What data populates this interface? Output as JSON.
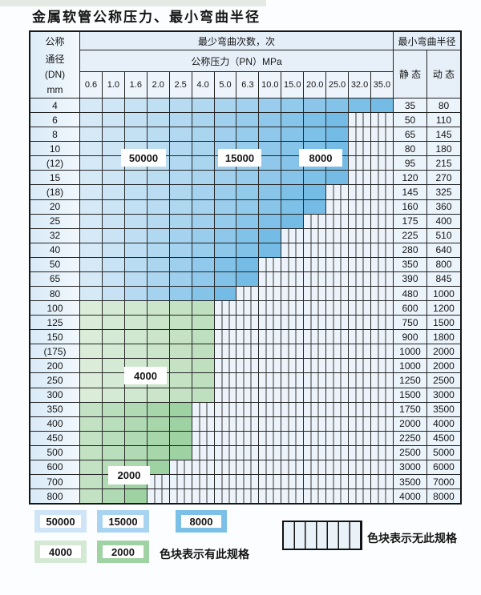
{
  "title": "金属软管公称压力、最小弯曲半径",
  "table": {
    "dn_header_lines": [
      "公称",
      "通径",
      "(DN)",
      "mm"
    ],
    "bend_cycles_header": "最少弯曲次数，次",
    "pressure_header": "公称压力（PN）MPa",
    "radius_header": "最小弯曲半径",
    "static_header": "静 态",
    "dynamic_header": "动 态"
  },
  "region_labels": {
    "r50000": "50000",
    "r15000": "15000",
    "r8000": "8000",
    "r4000": "4000",
    "r2000": "2000"
  },
  "legend": {
    "available_items": [
      "50000",
      "15000",
      "8000",
      "4000",
      "2000"
    ],
    "available_label": "色块表示有此规格",
    "unavailable_label": "色块表示无此规格"
  },
  "colors": {
    "blue_light": "#d6e9f7",
    "blue_dark": "#74bce6",
    "green4000_light": "#dbedd9",
    "green4000_dark": "#bfe0bf",
    "green2000_light": "#c2e2c3",
    "green2000_dark": "#9ed2a2",
    "legend_50000": "#cfe4f6",
    "legend_15000": "#a9d4f1",
    "legend_8000": "#7cc0e8",
    "legend_4000": "#d4e9d3",
    "legend_2000": "#9fd3a3",
    "nospec_bg": "#ecf3fa",
    "grid_line": "#2a2a2a"
  },
  "chart_data": {
    "type": "table",
    "title": "金属软管公称压力、最小弯曲半径",
    "pressure_columns": [
      "0.6",
      "1.0",
      "1.6",
      "2.0",
      "2.5",
      "4.0",
      "5.0",
      "6.3",
      "10.0",
      "15.0",
      "20.0",
      "25.0",
      "32.0",
      "35.0"
    ],
    "zone_bend_cycles_labels": {
      "blue": [
        "50000",
        "15000",
        "8000"
      ],
      "green4000": [
        "4000"
      ],
      "green2000": [
        "2000"
      ]
    },
    "rows": [
      {
        "dn": "4",
        "zone": "blue",
        "available_cols": 14,
        "static": "35",
        "dynamic": "80"
      },
      {
        "dn": "6",
        "zone": "blue",
        "available_cols": 12,
        "static": "50",
        "dynamic": "110"
      },
      {
        "dn": "8",
        "zone": "blue",
        "available_cols": 12,
        "static": "65",
        "dynamic": "145"
      },
      {
        "dn": "10",
        "zone": "blue",
        "available_cols": 12,
        "static": "80",
        "dynamic": "180"
      },
      {
        "dn": "(12)",
        "zone": "blue",
        "available_cols": 12,
        "static": "95",
        "dynamic": "215"
      },
      {
        "dn": "15",
        "zone": "blue",
        "available_cols": 12,
        "static": "120",
        "dynamic": "270"
      },
      {
        "dn": "(18)",
        "zone": "blue",
        "available_cols": 11,
        "static": "145",
        "dynamic": "325"
      },
      {
        "dn": "20",
        "zone": "blue",
        "available_cols": 11,
        "static": "160",
        "dynamic": "360"
      },
      {
        "dn": "25",
        "zone": "blue",
        "available_cols": 10,
        "static": "175",
        "dynamic": "400"
      },
      {
        "dn": "32",
        "zone": "blue",
        "available_cols": 9,
        "static": "225",
        "dynamic": "510"
      },
      {
        "dn": "40",
        "zone": "blue",
        "available_cols": 9,
        "static": "280",
        "dynamic": "640"
      },
      {
        "dn": "50",
        "zone": "blue",
        "available_cols": 8,
        "static": "350",
        "dynamic": "800"
      },
      {
        "dn": "65",
        "zone": "blue",
        "available_cols": 8,
        "static": "390",
        "dynamic": "845"
      },
      {
        "dn": "80",
        "zone": "blue",
        "available_cols": 7,
        "static": "480",
        "dynamic": "1000"
      },
      {
        "dn": "100",
        "zone": "green4000",
        "available_cols": 6,
        "static": "600",
        "dynamic": "1200"
      },
      {
        "dn": "125",
        "zone": "green4000",
        "available_cols": 6,
        "static": "750",
        "dynamic": "1500"
      },
      {
        "dn": "150",
        "zone": "green4000",
        "available_cols": 6,
        "static": "900",
        "dynamic": "1800"
      },
      {
        "dn": "(175)",
        "zone": "green4000",
        "available_cols": 6,
        "static": "1000",
        "dynamic": "2000"
      },
      {
        "dn": "200",
        "zone": "green4000",
        "available_cols": 6,
        "static": "1000",
        "dynamic": "2000"
      },
      {
        "dn": "250",
        "zone": "green4000",
        "available_cols": 6,
        "static": "1250",
        "dynamic": "2500"
      },
      {
        "dn": "300",
        "zone": "green4000",
        "available_cols": 6,
        "static": "1500",
        "dynamic": "3000"
      },
      {
        "dn": "350",
        "zone": "green2000",
        "available_cols": 5,
        "static": "1750",
        "dynamic": "3500"
      },
      {
        "dn": "400",
        "zone": "green2000",
        "available_cols": 5,
        "static": "2000",
        "dynamic": "4000"
      },
      {
        "dn": "450",
        "zone": "green2000",
        "available_cols": 5,
        "static": "2250",
        "dynamic": "4500"
      },
      {
        "dn": "500",
        "zone": "green2000",
        "available_cols": 5,
        "static": "2500",
        "dynamic": "5000"
      },
      {
        "dn": "600",
        "zone": "green2000",
        "available_cols": 4,
        "static": "3000",
        "dynamic": "6000"
      },
      {
        "dn": "700",
        "zone": "green2000",
        "available_cols": 3,
        "static": "3500",
        "dynamic": "7000"
      },
      {
        "dn": "800",
        "zone": "green2000",
        "available_cols": 3,
        "static": "4000",
        "dynamic": "8000"
      }
    ]
  }
}
